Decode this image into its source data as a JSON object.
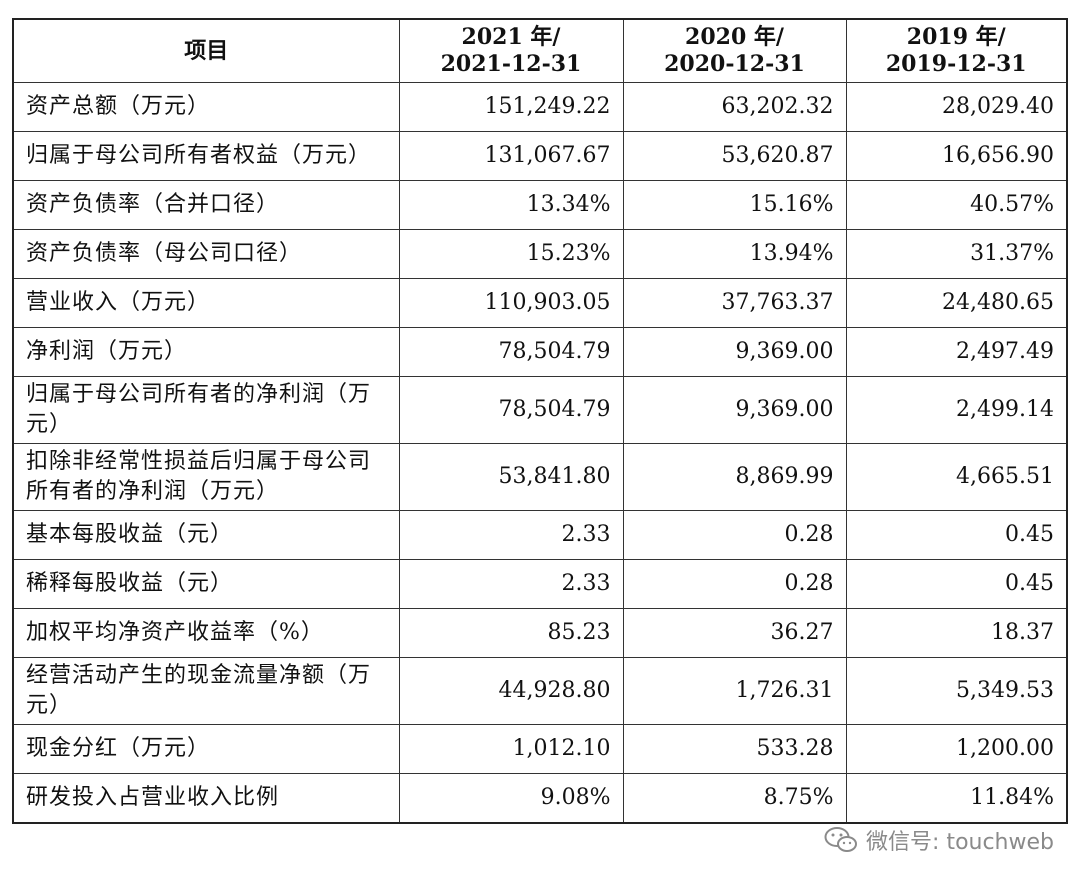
{
  "table": {
    "headers": [
      {
        "line1": "项目",
        "line2": ""
      },
      {
        "line1": "2021 年/",
        "line2": "2021-12-31"
      },
      {
        "line1": "2020 年/",
        "line2": "2020-12-31"
      },
      {
        "line1": "2019 年/",
        "line2": "2019-12-31"
      }
    ],
    "rows": [
      {
        "label": "资产总额（万元）",
        "values": [
          "151,249.22",
          "63,202.32",
          "28,029.40"
        ]
      },
      {
        "label": "归属于母公司所有者权益（万元）",
        "values": [
          "131,067.67",
          "53,620.87",
          "16,656.90"
        ]
      },
      {
        "label": "资产负债率（合并口径）",
        "values": [
          "13.34%",
          "15.16%",
          "40.57%"
        ]
      },
      {
        "label": "资产负债率（母公司口径）",
        "values": [
          "15.23%",
          "13.94%",
          "31.37%"
        ]
      },
      {
        "label": "营业收入（万元）",
        "values": [
          "110,903.05",
          "37,763.37",
          "24,480.65"
        ]
      },
      {
        "label": "净利润（万元）",
        "values": [
          "78,504.79",
          "9,369.00",
          "2,497.49"
        ]
      },
      {
        "label": "归属于母公司所有者的净利润（万元）",
        "values": [
          "78,504.79",
          "9,369.00",
          "2,499.14"
        ]
      },
      {
        "label": "扣除非经常性损益后归属于母公司所有者的净利润（万元）",
        "values": [
          "53,841.80",
          "8,869.99",
          "4,665.51"
        ]
      },
      {
        "label": "基本每股收益（元）",
        "values": [
          "2.33",
          "0.28",
          "0.45"
        ]
      },
      {
        "label": "稀释每股收益（元）",
        "values": [
          "2.33",
          "0.28",
          "0.45"
        ]
      },
      {
        "label": "加权平均净资产收益率（%）",
        "values": [
          "85.23",
          "36.27",
          "18.37"
        ]
      },
      {
        "label": "经营活动产生的现金流量净额（万元）",
        "values": [
          "44,928.80",
          "1,726.31",
          "5,349.53"
        ]
      },
      {
        "label": "现金分红（万元）",
        "values": [
          "1,012.10",
          "533.28",
          "1,200.00"
        ]
      },
      {
        "label": "研发投入占营业收入比例",
        "values": [
          "9.08%",
          "8.75%",
          "11.84%"
        ]
      }
    ]
  },
  "watermark": {
    "icon": "wechat-icon",
    "text": "微信号: touchweb",
    "color": "#8a8a8a"
  }
}
